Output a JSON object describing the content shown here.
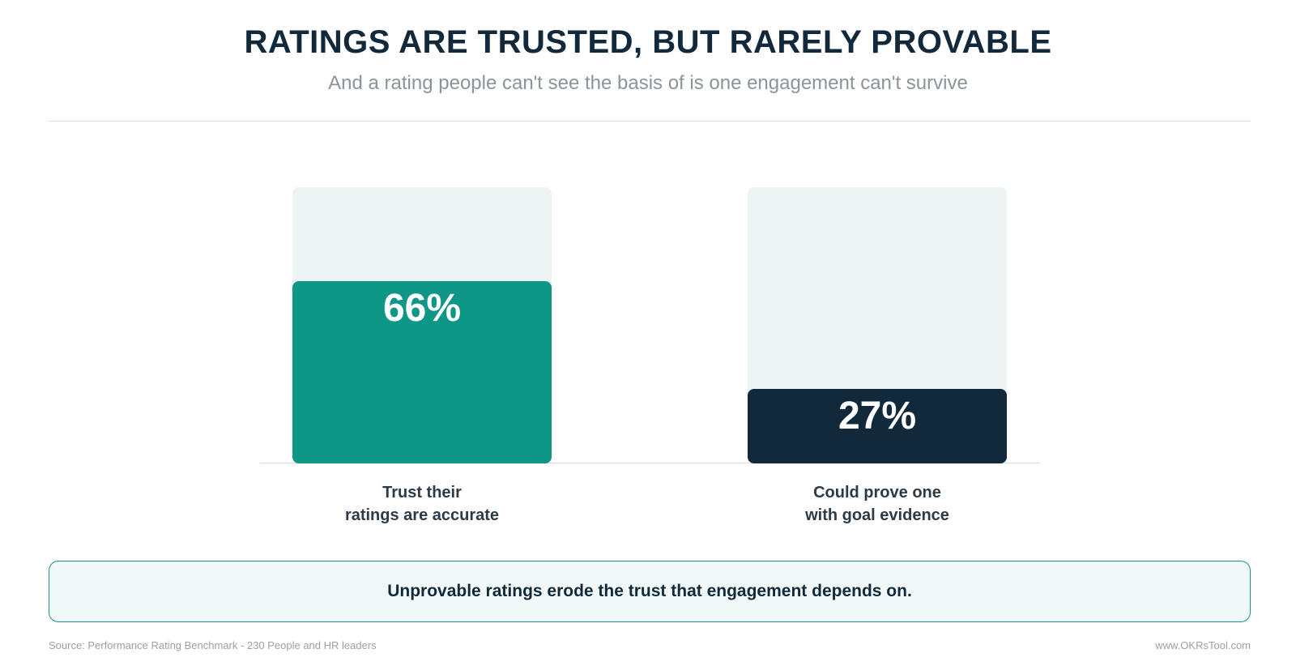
{
  "header": {
    "title": "RATINGS ARE TRUSTED, BUT RARELY PROVABLE",
    "subtitle": "And a rating people can't see the basis of is one engagement can't survive"
  },
  "chart_data": {
    "type": "bar",
    "categories": [
      "Trust their\nratings are accurate",
      "Could prove one\nwith goal evidence"
    ],
    "values": [
      66,
      27
    ],
    "value_labels": [
      "66%",
      "27%"
    ],
    "ylim": [
      0,
      100
    ],
    "colors": [
      "#0e9686",
      "#12293b"
    ],
    "track_color": "#eef3f3"
  },
  "callout": {
    "text": "Unprovable ratings erode the trust that engagement depends on."
  },
  "footer": {
    "source": "Source: Performance Rating Benchmark - 230 People and HR leaders",
    "site": "www.OKRsTool.com"
  }
}
